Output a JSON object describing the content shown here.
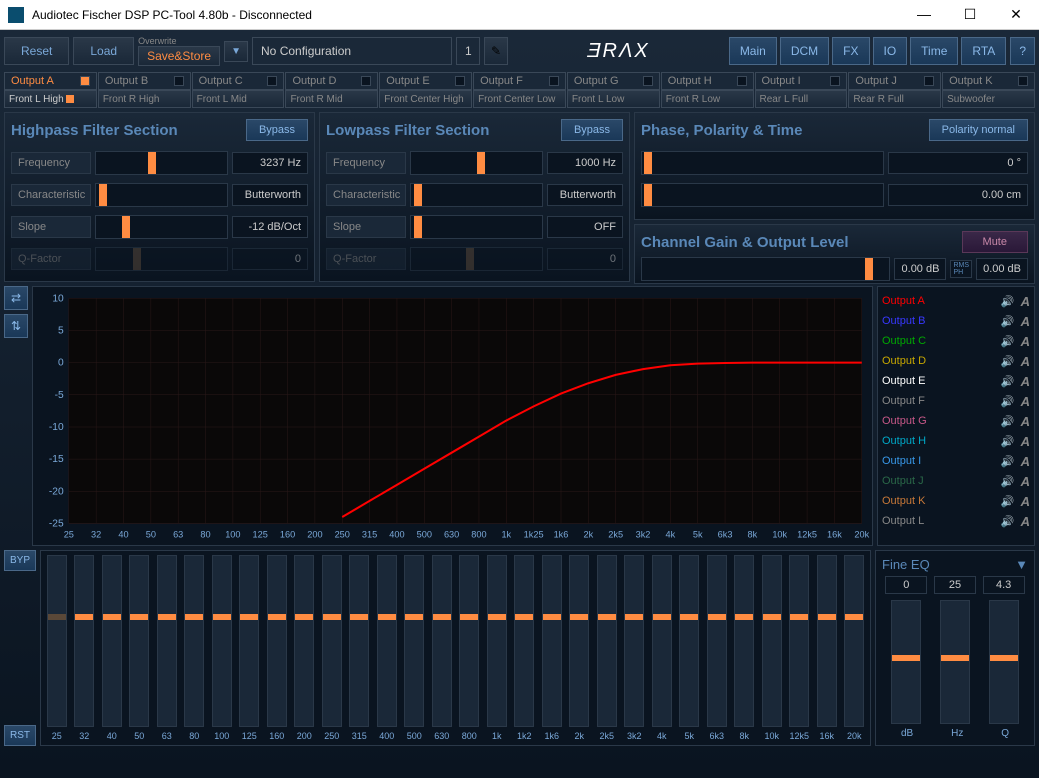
{
  "window": {
    "title": "Audiotec Fischer DSP PC-Tool 4.80b - Disconnected"
  },
  "toolbar": {
    "reset": "Reset",
    "load": "Load",
    "overwrite_label": "Overwrite",
    "savestore": "Save&Store",
    "config_name": "No Configuration",
    "config_num": "1",
    "logo": "ƎRɅX",
    "tabs": [
      "Main",
      "DCM",
      "FX",
      "IO",
      "Time",
      "RTA"
    ],
    "help": "?"
  },
  "output_tabs": [
    "Output A",
    "Output B",
    "Output C",
    "Output D",
    "Output E",
    "Output F",
    "Output G",
    "Output H",
    "Output I",
    "Output J",
    "Output K"
  ],
  "output_active": 0,
  "channel_tabs": [
    "Front L High",
    "Front R High",
    "Front L Mid",
    "Front R Mid",
    "Front Center High",
    "Front Center Low",
    "Front L Low",
    "Front R Low",
    "Rear L Full",
    "Rear R Full",
    "Subwoofer"
  ],
  "channel_active": 0,
  "highpass": {
    "title": "Highpass Filter Section",
    "bypass": "Bypass",
    "freq_label": "Frequency",
    "freq_value": "3237 Hz",
    "freq_pos": 40,
    "char_label": "Characteristic",
    "char_value": "Butterworth",
    "char_pos": 2,
    "slope_label": "Slope",
    "slope_value": "-12 dB/Oct",
    "slope_pos": 20,
    "q_label": "Q-Factor",
    "q_value": "0",
    "q_pos": 28
  },
  "lowpass": {
    "title": "Lowpass Filter Section",
    "bypass": "Bypass",
    "freq_label": "Frequency",
    "freq_value": "1000 Hz",
    "freq_pos": 50,
    "char_label": "Characteristic",
    "char_value": "Butterworth",
    "char_pos": 2,
    "slope_label": "Slope",
    "slope_value": "OFF",
    "slope_pos": 2,
    "q_label": "Q-Factor",
    "q_value": "0",
    "q_pos": 42
  },
  "phase": {
    "title": "Phase, Polarity & Time",
    "polarity": "Polarity normal",
    "degree_value": "0 °",
    "distance_value": "0.00 cm"
  },
  "gain": {
    "title": "Channel Gain & Output Level",
    "mute": "Mute",
    "db_value": "0.00 dB",
    "level_value": "0.00 dB",
    "slider_pos": 90
  },
  "graph": {
    "y_ticks": [
      10,
      5,
      0,
      -5,
      -10,
      -15,
      -20,
      -25
    ],
    "x_ticks": [
      "25",
      "32",
      "40",
      "50",
      "63",
      "80",
      "100",
      "125",
      "160",
      "200",
      "250",
      "315",
      "400",
      "500",
      "630",
      "800",
      "1k",
      "1k25",
      "1k6",
      "2k",
      "2k5",
      "3k2",
      "4k",
      "5k",
      "6k3",
      "8k",
      "10k",
      "12k5",
      "16k",
      "20k"
    ],
    "curve_color": "#ff0000",
    "grid_color": "#2a1818",
    "bg_color": "#0a0808"
  },
  "legend": [
    {
      "label": "Output A",
      "color": "#ff0000"
    },
    {
      "label": "Output B",
      "color": "#3838ff"
    },
    {
      "label": "Output C",
      "color": "#00a800"
    },
    {
      "label": "Output D",
      "color": "#c8a800"
    },
    {
      "label": "Output E",
      "color": "#ffffff"
    },
    {
      "label": "Output F",
      "color": "#888888"
    },
    {
      "label": "Output G",
      "color": "#c85888"
    },
    {
      "label": "Output H",
      "color": "#00a8c8"
    },
    {
      "label": "Output I",
      "color": "#3898e8"
    },
    {
      "label": "Output J",
      "color": "#2a6848"
    },
    {
      "label": "Output K",
      "color": "#c87838"
    },
    {
      "label": "Output L",
      "color": "#888888"
    }
  ],
  "eq": {
    "byp": "BYP",
    "rst": "RST",
    "freqs": [
      "25",
      "32",
      "40",
      "50",
      "63",
      "80",
      "100",
      "125",
      "160",
      "200",
      "250",
      "315",
      "400",
      "500",
      "630",
      "800",
      "1k",
      "1k2",
      "1k6",
      "2k",
      "2k5",
      "3k2",
      "4k",
      "5k",
      "6k3",
      "8k",
      "10k",
      "12k5",
      "16k",
      "20k"
    ],
    "handle_pos": 34
  },
  "fine_eq": {
    "title": "Fine EQ",
    "db": "0",
    "hz": "25",
    "q": "4.3",
    "labels": [
      "dB",
      "Hz",
      "Q"
    ],
    "handle_pos": 44
  }
}
